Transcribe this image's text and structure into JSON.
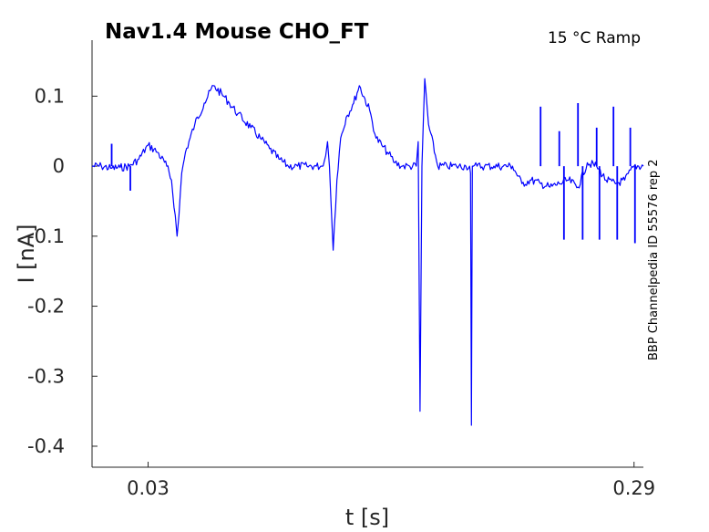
{
  "chart_data": {
    "type": "line",
    "title": "Nav1.4  Mouse  CHO_FT",
    "condition_label": "15 °C  Ramp",
    "side_label": "BBP Channelpedia ID 55576 rep 2",
    "xlabel": "t [s]",
    "ylabel": "I [nA]",
    "xlim": [
      0.0,
      0.295
    ],
    "ylim": [
      -0.43,
      0.18
    ],
    "xticks": [
      0.03,
      0.29
    ],
    "xtick_labels": [
      "0.03",
      "0.29"
    ],
    "yticks": [
      0.1,
      0,
      -0.1,
      -0.2,
      -0.3,
      -0.4
    ],
    "ytick_labels": [
      "0.1",
      "0",
      "-0.1",
      "-0.2",
      "-0.3",
      "-0.4"
    ],
    "grid": false,
    "series": [
      {
        "color": "#0000ff",
        "x": [
          0.0,
          0.005,
          0.01,
          0.015,
          0.02,
          0.025,
          0.03,
          0.035,
          0.04,
          0.0425,
          0.0445,
          0.0455,
          0.0465,
          0.048,
          0.05,
          0.055,
          0.06,
          0.065,
          0.0705,
          0.0735,
          0.078,
          0.085,
          0.09,
          0.095,
          0.1,
          0.105,
          0.11,
          0.115,
          0.12,
          0.123,
          0.125,
          0.126,
          0.127,
          0.128,
          0.129,
          0.131,
          0.133,
          0.136,
          0.14,
          0.143,
          0.1485,
          0.152,
          0.155,
          0.158,
          0.162,
          0.166,
          0.17,
          0.1735,
          0.1745,
          0.1755,
          0.1765,
          0.178,
          0.18,
          0.185,
          0.19,
          0.195,
          0.2,
          0.202,
          0.2025,
          0.203,
          0.2035,
          0.204,
          0.206,
          0.21,
          0.215,
          0.22,
          0.225,
          0.23,
          0.235,
          0.24,
          0.245,
          0.25,
          0.255,
          0.26,
          0.265,
          0.27,
          0.275,
          0.28,
          0.285,
          0.29,
          0.295
        ],
        "y": [
          0.0,
          0.0,
          -0.003,
          -0.002,
          0.0,
          0.01,
          0.03,
          0.02,
          0.0,
          -0.02,
          -0.07,
          -0.1,
          -0.07,
          -0.01,
          0.02,
          0.06,
          0.09,
          0.115,
          0.1,
          0.09,
          0.075,
          0.055,
          0.04,
          0.025,
          0.01,
          0.0,
          0.0,
          0.0,
          0.0,
          0.0,
          0.015,
          0.035,
          0.0,
          -0.06,
          -0.12,
          -0.02,
          0.04,
          0.07,
          0.09,
          0.115,
          0.08,
          0.04,
          0.03,
          0.02,
          0.005,
          0.0,
          0.0,
          0.0,
          0.035,
          -0.35,
          0.0,
          0.125,
          0.06,
          0.0,
          0.0,
          0.0,
          0.0,
          0.0,
          -0.01,
          -0.37,
          0.0,
          0.0,
          0.0,
          0.0,
          0.0,
          0.0,
          0.0,
          -0.025,
          -0.02,
          -0.025,
          -0.03,
          -0.025,
          -0.02,
          -0.03,
          0.005,
          0.0,
          -0.02,
          -0.025,
          -0.02,
          0.0,
          0.0
        ]
      }
    ],
    "spikes": [
      {
        "x": 0.0105,
        "y": 0.032
      },
      {
        "x": 0.0205,
        "y": -0.035
      },
      {
        "x": 0.24,
        "y": 0.085
      },
      {
        "x": 0.25,
        "y": 0.05
      },
      {
        "x": 0.2525,
        "y": -0.105
      },
      {
        "x": 0.26,
        "y": 0.09
      },
      {
        "x": 0.2625,
        "y": -0.105
      },
      {
        "x": 0.27,
        "y": 0.055
      },
      {
        "x": 0.2715,
        "y": -0.105
      },
      {
        "x": 0.279,
        "y": 0.085
      },
      {
        "x": 0.281,
        "y": -0.105
      },
      {
        "x": 0.288,
        "y": 0.055
      },
      {
        "x": 0.2905,
        "y": -0.11
      }
    ]
  }
}
